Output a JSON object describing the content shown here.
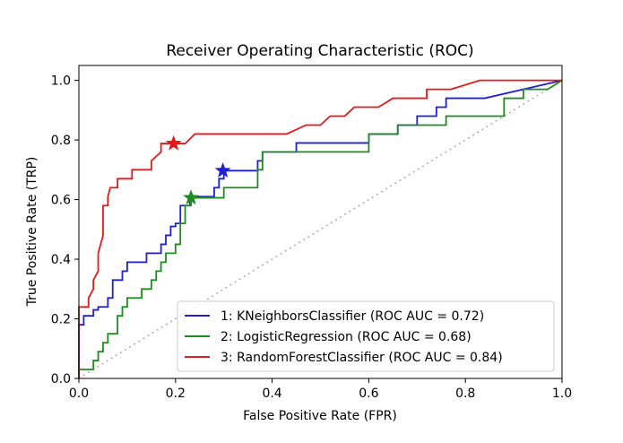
{
  "chart_data": {
    "type": "line",
    "title": "Receiver Operating Characteristic (ROC)",
    "xlabel": "False Positive Rate (FPR)",
    "ylabel": "True Positive Rate (TRP)",
    "xlim": [
      0,
      1
    ],
    "ylim": [
      0,
      1.05
    ],
    "xticks": [
      0.0,
      0.2,
      0.4,
      0.6,
      0.8,
      1.0
    ],
    "yticks": [
      0.0,
      0.2,
      0.4,
      0.6,
      0.8,
      1.0
    ],
    "xtick_labels": [
      "0.0",
      "0.2",
      "0.4",
      "0.6",
      "0.8",
      "1.0"
    ],
    "ytick_labels": [
      "0.0",
      "0.2",
      "0.4",
      "0.6",
      "0.8",
      "1.0"
    ],
    "grid": false,
    "legend_position": "lower-right",
    "diagonal": {
      "points": [
        [
          0,
          0
        ],
        [
          1,
          1
        ]
      ],
      "color": "#b0b0b0",
      "style": "dotted"
    },
    "series": [
      {
        "name": "1: KNeighborsClassifier (ROC AUC = 0.72)",
        "color": "#1f1fd6",
        "marker": {
          "x": 0.298,
          "y": 0.697
        },
        "points": [
          [
            0,
            0
          ],
          [
            0,
            0.18
          ],
          [
            0.01,
            0.18
          ],
          [
            0.01,
            0.21
          ],
          [
            0.03,
            0.21
          ],
          [
            0.03,
            0.23
          ],
          [
            0.04,
            0.23
          ],
          [
            0.04,
            0.24
          ],
          [
            0.06,
            0.24
          ],
          [
            0.06,
            0.27
          ],
          [
            0.07,
            0.27
          ],
          [
            0.07,
            0.33
          ],
          [
            0.09,
            0.33
          ],
          [
            0.09,
            0.36
          ],
          [
            0.1,
            0.36
          ],
          [
            0.1,
            0.39
          ],
          [
            0.14,
            0.39
          ],
          [
            0.14,
            0.42
          ],
          [
            0.17,
            0.42
          ],
          [
            0.17,
            0.45
          ],
          [
            0.18,
            0.45
          ],
          [
            0.18,
            0.48
          ],
          [
            0.19,
            0.48
          ],
          [
            0.19,
            0.51
          ],
          [
            0.2,
            0.51
          ],
          [
            0.2,
            0.52
          ],
          [
            0.21,
            0.52
          ],
          [
            0.21,
            0.55
          ],
          [
            0.21,
            0.58
          ],
          [
            0.23,
            0.58
          ],
          [
            0.23,
            0.61
          ],
          [
            0.28,
            0.61
          ],
          [
            0.28,
            0.64
          ],
          [
            0.29,
            0.64
          ],
          [
            0.29,
            0.67
          ],
          [
            0.3,
            0.67
          ],
          [
            0.3,
            0.697
          ],
          [
            0.37,
            0.697
          ],
          [
            0.37,
            0.73
          ],
          [
            0.38,
            0.73
          ],
          [
            0.38,
            0.76
          ],
          [
            0.45,
            0.76
          ],
          [
            0.45,
            0.79
          ],
          [
            0.6,
            0.79
          ],
          [
            0.6,
            0.82
          ],
          [
            0.66,
            0.82
          ],
          [
            0.66,
            0.85
          ],
          [
            0.7,
            0.85
          ],
          [
            0.7,
            0.88
          ],
          [
            0.74,
            0.88
          ],
          [
            0.74,
            0.91
          ],
          [
            0.76,
            0.91
          ],
          [
            0.76,
            0.94
          ],
          [
            0.84,
            0.94
          ],
          [
            0.96,
            0.985
          ],
          [
            1,
            1
          ]
        ]
      },
      {
        "name": "2: LogisticRegression (ROC AUC = 0.68)",
        "color": "#1f8c1f",
        "marker": {
          "x": 0.232,
          "y": 0.606
        },
        "points": [
          [
            0,
            0
          ],
          [
            0,
            0.03
          ],
          [
            0.03,
            0.03
          ],
          [
            0.03,
            0.06
          ],
          [
            0.04,
            0.06
          ],
          [
            0.04,
            0.09
          ],
          [
            0.05,
            0.09
          ],
          [
            0.05,
            0.12
          ],
          [
            0.06,
            0.12
          ],
          [
            0.06,
            0.15
          ],
          [
            0.08,
            0.15
          ],
          [
            0.08,
            0.21
          ],
          [
            0.09,
            0.21
          ],
          [
            0.09,
            0.24
          ],
          [
            0.1,
            0.24
          ],
          [
            0.1,
            0.27
          ],
          [
            0.13,
            0.27
          ],
          [
            0.13,
            0.3
          ],
          [
            0.15,
            0.3
          ],
          [
            0.15,
            0.33
          ],
          [
            0.16,
            0.33
          ],
          [
            0.16,
            0.36
          ],
          [
            0.17,
            0.36
          ],
          [
            0.17,
            0.39
          ],
          [
            0.18,
            0.39
          ],
          [
            0.18,
            0.42
          ],
          [
            0.2,
            0.42
          ],
          [
            0.2,
            0.45
          ],
          [
            0.21,
            0.45
          ],
          [
            0.21,
            0.52
          ],
          [
            0.22,
            0.52
          ],
          [
            0.22,
            0.58
          ],
          [
            0.232,
            0.58
          ],
          [
            0.232,
            0.606
          ],
          [
            0.3,
            0.606
          ],
          [
            0.3,
            0.64
          ],
          [
            0.37,
            0.64
          ],
          [
            0.37,
            0.7
          ],
          [
            0.38,
            0.7
          ],
          [
            0.38,
            0.76
          ],
          [
            0.6,
            0.76
          ],
          [
            0.6,
            0.82
          ],
          [
            0.66,
            0.82
          ],
          [
            0.66,
            0.85
          ],
          [
            0.76,
            0.85
          ],
          [
            0.76,
            0.88
          ],
          [
            0.88,
            0.88
          ],
          [
            0.88,
            0.94
          ],
          [
            0.92,
            0.94
          ],
          [
            0.92,
            0.97
          ],
          [
            0.97,
            0.97
          ],
          [
            1,
            1
          ]
        ]
      },
      {
        "name": "3: RandomForestClassifier (ROC AUC = 0.84)",
        "color": "#e41a1a",
        "marker": {
          "x": 0.196,
          "y": 0.788
        },
        "points": [
          [
            0,
            0
          ],
          [
            0,
            0.24
          ],
          [
            0.02,
            0.24
          ],
          [
            0.02,
            0.27
          ],
          [
            0.03,
            0.3
          ],
          [
            0.03,
            0.33
          ],
          [
            0.04,
            0.36
          ],
          [
            0.04,
            0.42
          ],
          [
            0.05,
            0.48
          ],
          [
            0.05,
            0.58
          ],
          [
            0.06,
            0.58
          ],
          [
            0.06,
            0.61
          ],
          [
            0.065,
            0.64
          ],
          [
            0.08,
            0.64
          ],
          [
            0.08,
            0.67
          ],
          [
            0.11,
            0.67
          ],
          [
            0.11,
            0.7
          ],
          [
            0.15,
            0.7
          ],
          [
            0.15,
            0.73
          ],
          [
            0.17,
            0.76
          ],
          [
            0.17,
            0.788
          ],
          [
            0.22,
            0.788
          ],
          [
            0.24,
            0.82
          ],
          [
            0.43,
            0.82
          ],
          [
            0.47,
            0.85
          ],
          [
            0.5,
            0.85
          ],
          [
            0.52,
            0.88
          ],
          [
            0.55,
            0.88
          ],
          [
            0.57,
            0.91
          ],
          [
            0.62,
            0.91
          ],
          [
            0.65,
            0.94
          ],
          [
            0.72,
            0.94
          ],
          [
            0.72,
            0.97
          ],
          [
            0.77,
            0.97
          ],
          [
            0.83,
            1.0
          ],
          [
            1,
            1
          ]
        ]
      }
    ]
  }
}
